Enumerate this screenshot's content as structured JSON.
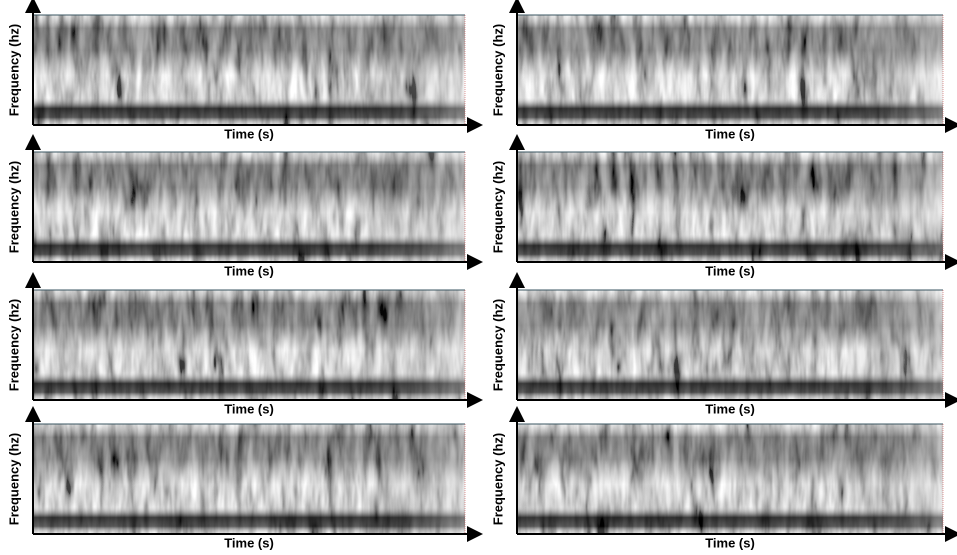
{
  "panels": [
    {
      "x_label": "Time (s)",
      "y_label": "Frequency (hz)"
    },
    {
      "x_label": "Time (s)",
      "y_label": "Frequency (hz)"
    },
    {
      "x_label": "Time (s)",
      "y_label": "Frequency (hz)"
    },
    {
      "x_label": "Time (s)",
      "y_label": "Frequency (hz)"
    },
    {
      "x_label": "Time (s)",
      "y_label": "Frequency (hz)"
    },
    {
      "x_label": "Time (s)",
      "y_label": "Frequency (hz)"
    },
    {
      "x_label": "Time (s)",
      "y_label": "Frequency (hz)"
    },
    {
      "x_label": "Time (s)",
      "y_label": "Frequency (hz)"
    }
  ]
}
